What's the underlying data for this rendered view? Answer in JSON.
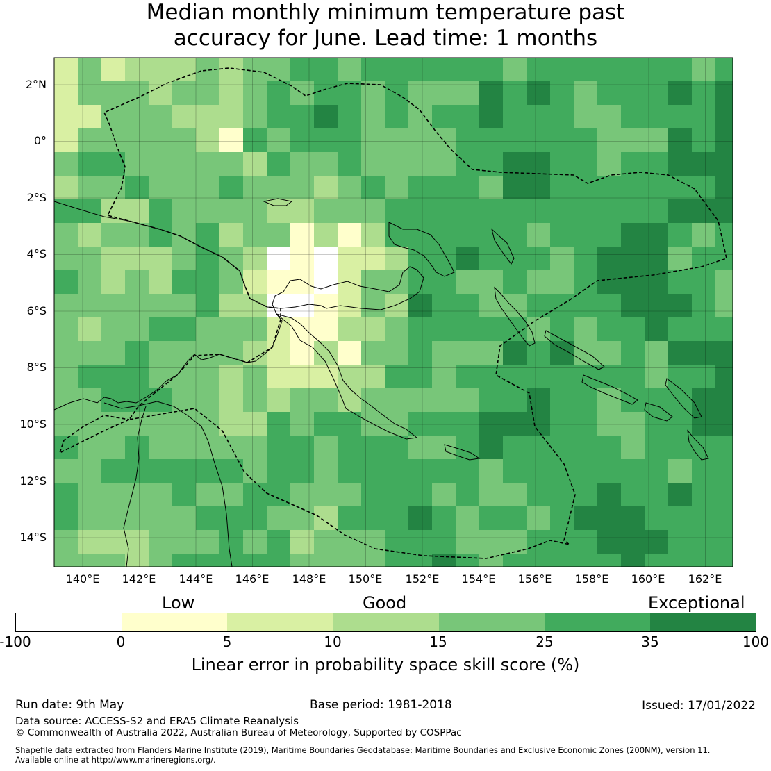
{
  "title": {
    "line1": "Median monthly minimum temperature past",
    "line2": "accuracy for June. Lead time: 1 months"
  },
  "map": {
    "lat_labels": [
      "2°N",
      "0°",
      "2°S",
      "4°S",
      "6°S",
      "8°S",
      "10°S",
      "12°S",
      "14°S"
    ],
    "lon_labels": [
      "140°E",
      "142°E",
      "144°E",
      "146°E",
      "148°E",
      "150°E",
      "152°E",
      "154°E",
      "156°E",
      "158°E",
      "160°E",
      "162°E"
    ]
  },
  "colorbar": {
    "category_labels": [
      "Low",
      "Good",
      "Exceptional"
    ],
    "tick_labels": [
      "-100",
      "0",
      "5",
      "10",
      "15",
      "25",
      "35",
      "100"
    ],
    "colors": [
      "#ffffff",
      "#ffffcc",
      "#d9f0a3",
      "#addd8e",
      "#78c679",
      "#41ab5d",
      "#238443"
    ],
    "label": "Linear error in probability space skill score (%)"
  },
  "footer": {
    "run_date": "Run date: 9th May",
    "base_period": "Base period: 1981-2018",
    "issued": "Issued: 17/01/2022",
    "data_source": "Data source: ACCESS-S2 and ERA5 Climate Reanalysis",
    "copyright": "© Commonwealth of Australia 2022, Australian Bureau of Meteorology, Supported by COSPPac",
    "shapefile_line1": "Shapefile data extracted from Flanders Marine Institute (2019), Maritime Boundaries Geodatabase: Maritime Boundaries and Exclusive Economic Zones (200NM), version 11.",
    "shapefile_line2": "Available online at http://www.marineregions.org/."
  }
}
